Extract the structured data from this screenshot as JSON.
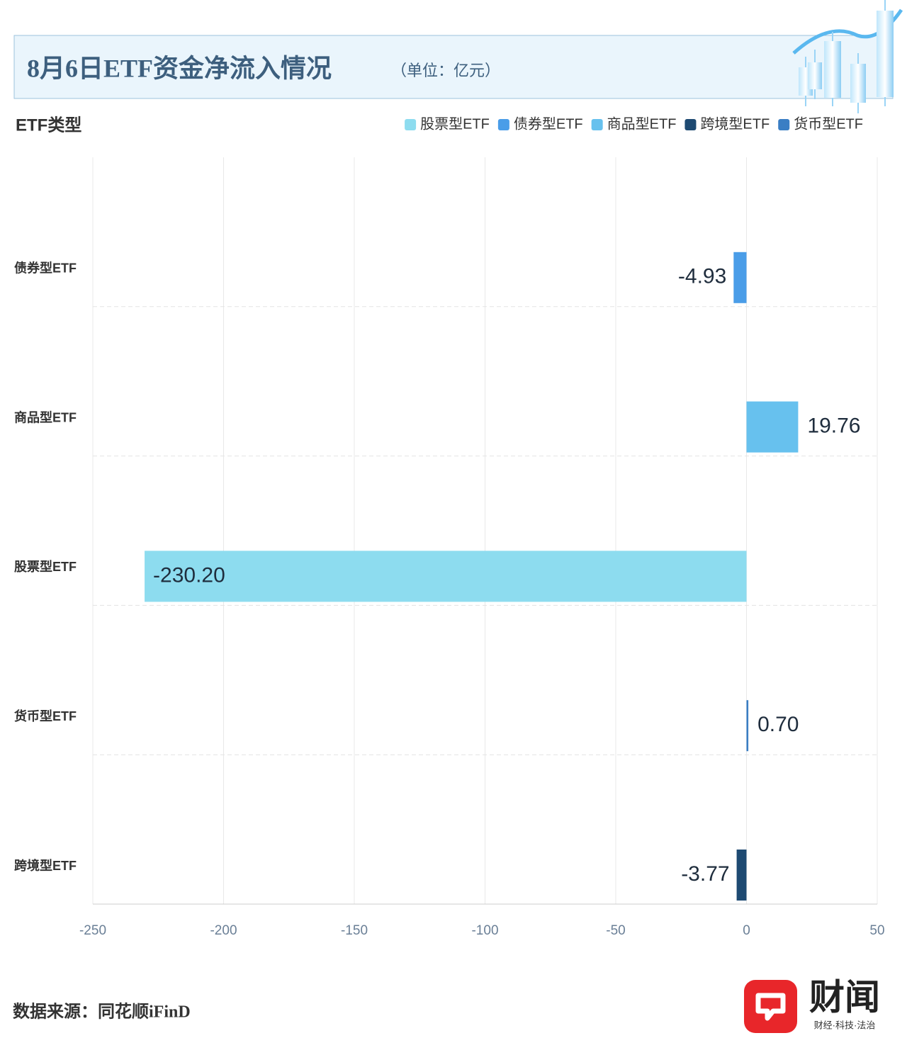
{
  "chart_data": {
    "type": "bar",
    "orientation": "horizontal",
    "title": "8月6日ETF资金净流入情况",
    "subtitle": "（单位：亿元）",
    "y_label": "ETF类型",
    "categories": [
      "债券型ETF",
      "商品型ETF",
      "股票型ETF",
      "货币型ETF",
      "跨境型ETF"
    ],
    "values": [
      -4.93,
      19.76,
      -230.2,
      0.7,
      -3.77
    ],
    "value_labels": [
      "-4.93",
      "19.76",
      "-230.20",
      "0.70",
      "-3.77"
    ],
    "legend": [
      {
        "name": "股票型ETF",
        "color": "#8ddcef"
      },
      {
        "name": "债券型ETF",
        "color": "#4a9de8"
      },
      {
        "name": "商品型ETF",
        "color": "#67c1ee"
      },
      {
        "name": "跨境型ETF",
        "color": "#1e4a72"
      },
      {
        "name": "货币型ETF",
        "color": "#3a7ec4"
      }
    ],
    "xlim": [
      -250,
      50
    ],
    "xticks": [
      -250,
      -200,
      -150,
      -100,
      -50,
      0,
      50
    ],
    "grid": true,
    "source": "数据来源：同花顺iFinD"
  },
  "logo": {
    "name": "财闻",
    "slogan": "财经·科技·法治"
  }
}
